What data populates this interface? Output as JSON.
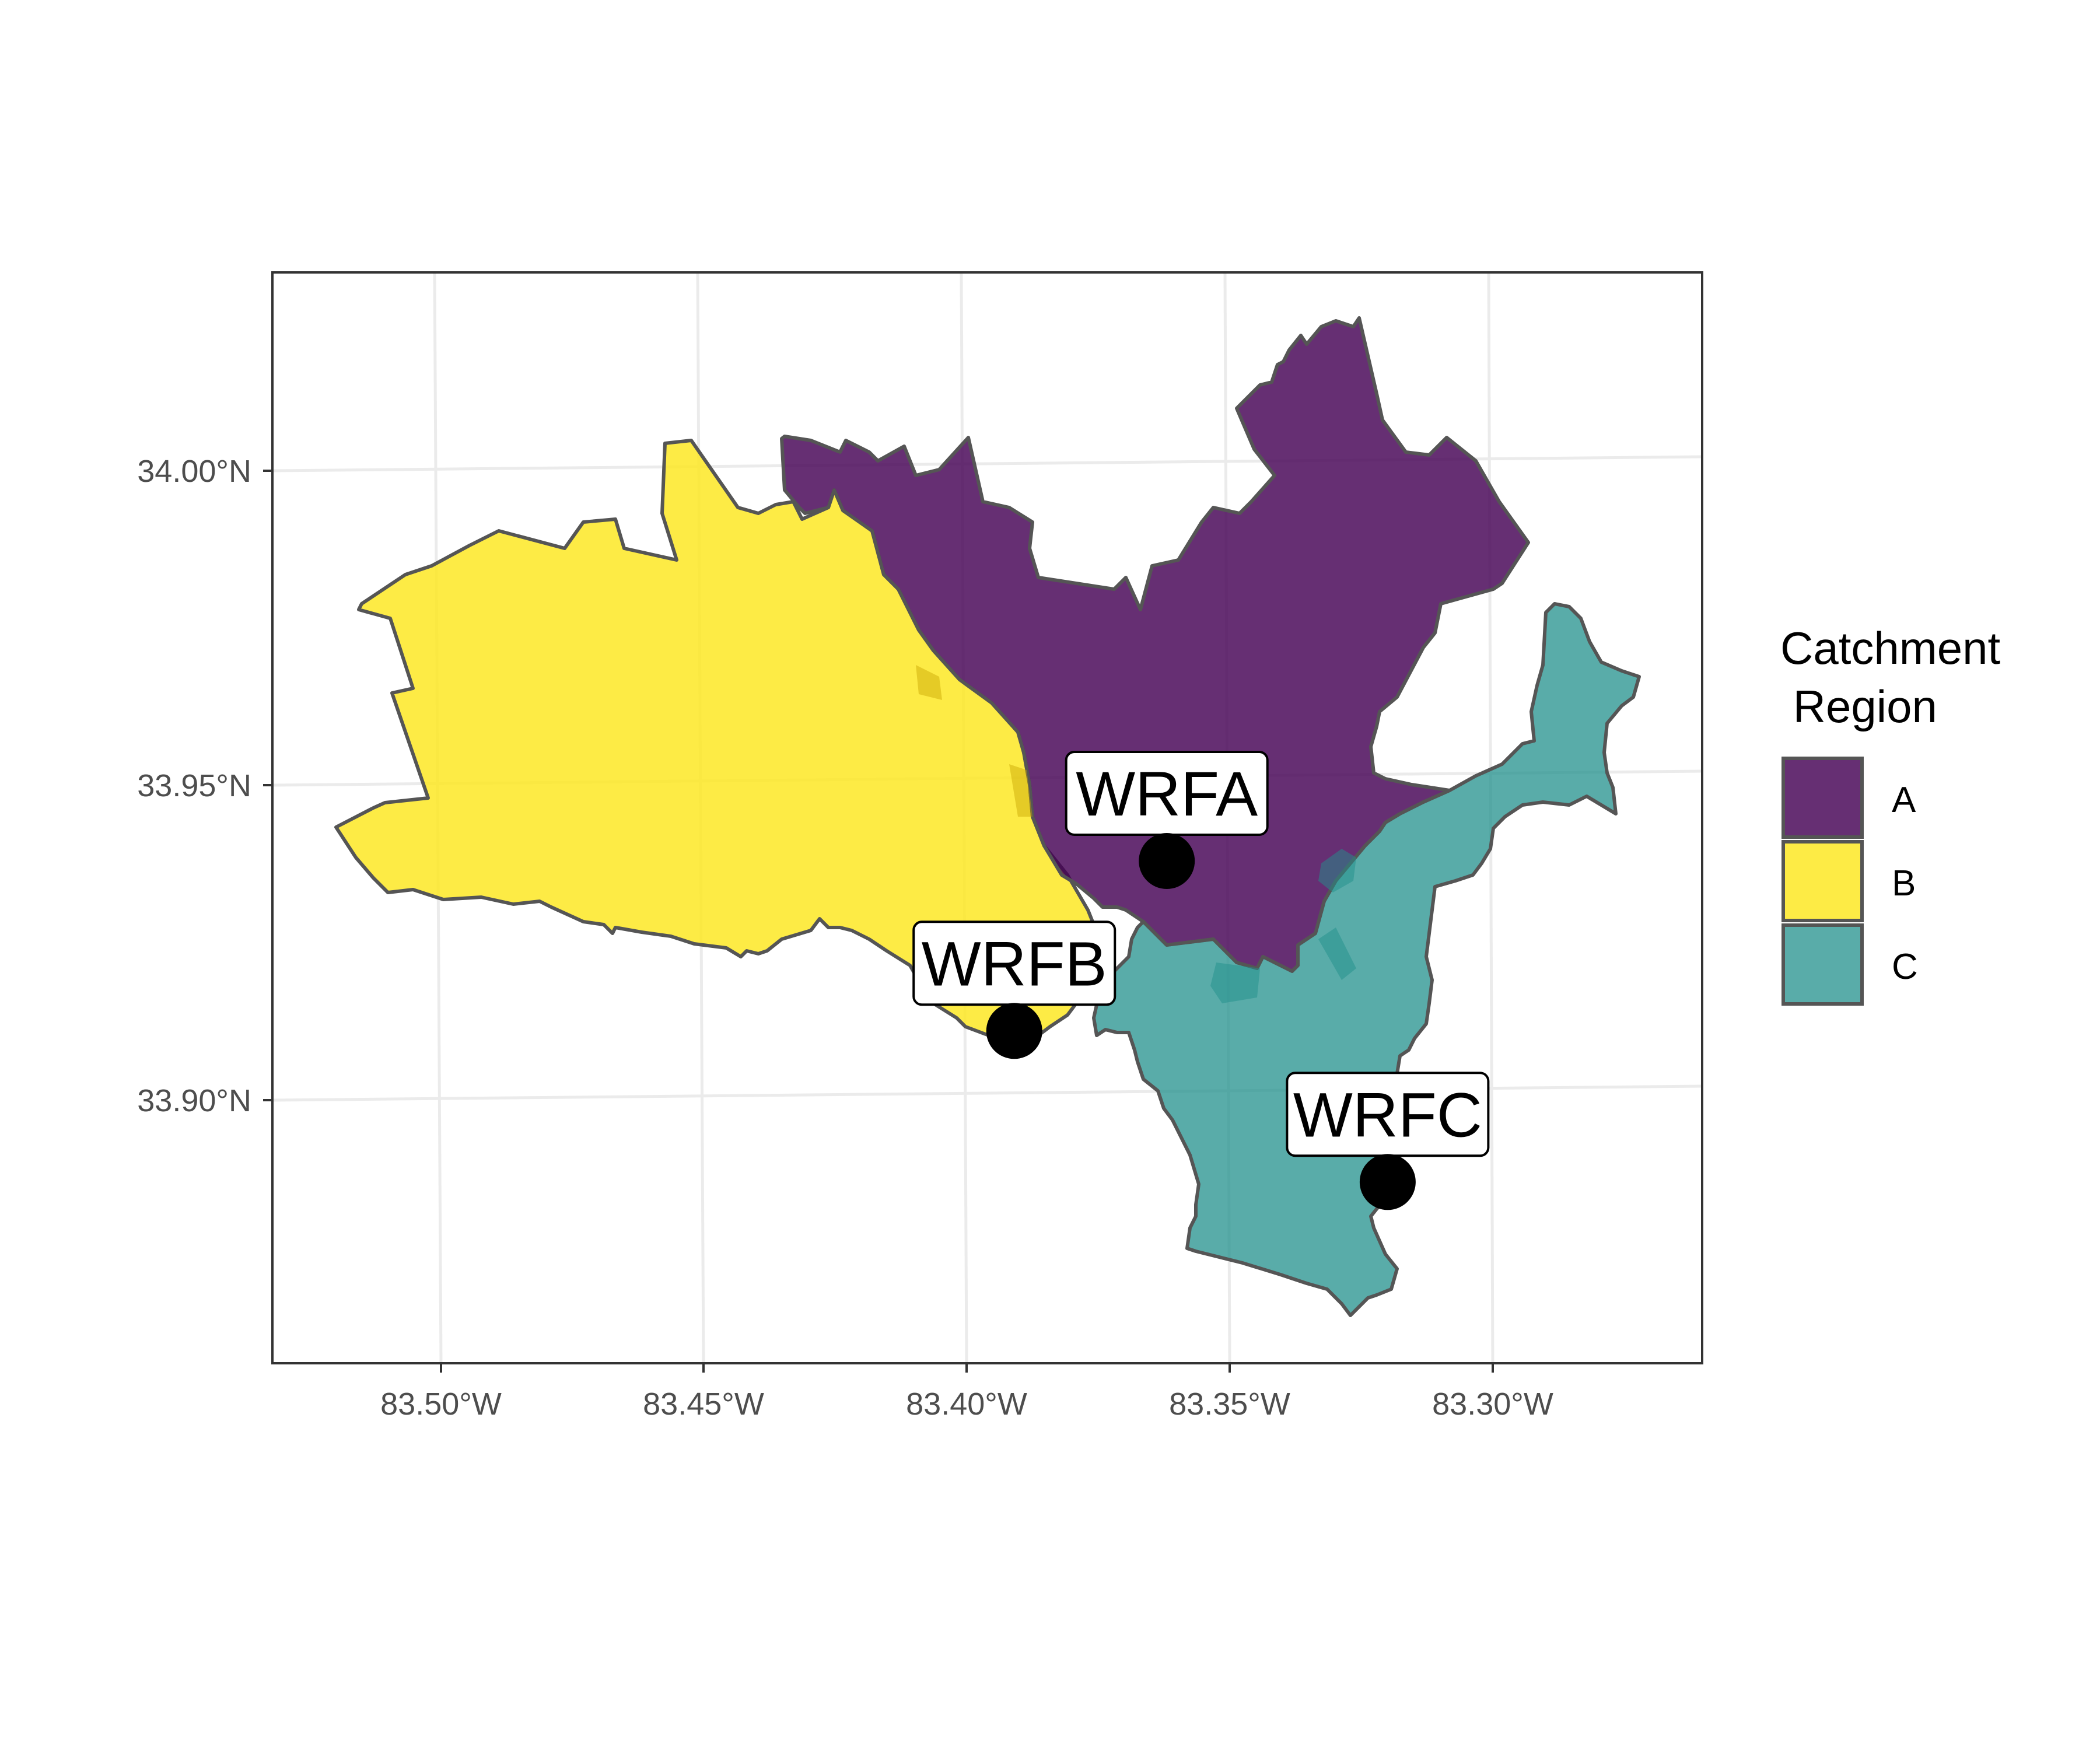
{
  "chart_data": {
    "type": "map",
    "x_axis": {
      "ticks": [
        {
          "value": -83.5,
          "label": "83.50°W"
        },
        {
          "value": -83.45,
          "label": "83.45°W"
        },
        {
          "value": -83.4,
          "label": "83.40°W"
        },
        {
          "value": -83.35,
          "label": "83.35°W"
        },
        {
          "value": -83.3,
          "label": "83.30°W"
        }
      ]
    },
    "y_axis": {
      "ticks": [
        {
          "value": 33.9,
          "label": "33.90°N"
        },
        {
          "value": 33.95,
          "label": "33.95°N"
        },
        {
          "value": 34.0,
          "label": "34.00°N"
        }
      ]
    },
    "grid": true,
    "legend": {
      "title_line1": "Catchment",
      "title_line2": " Region",
      "position": "right",
      "items": [
        {
          "label": "A",
          "color": "#440154"
        },
        {
          "label": "B",
          "color": "#FDE725"
        },
        {
          "label": "C",
          "color": "#21908C"
        }
      ]
    },
    "sites": [
      {
        "label": "WRFA",
        "lon": -83.362,
        "lat": 33.938
      },
      {
        "label": "WRFB",
        "lon": -83.391,
        "lat": 33.911
      },
      {
        "label": "WRFC",
        "lon": -83.32,
        "lat": 33.887
      }
    ],
    "regions": [
      {
        "name": "B",
        "color": "#FDE725"
      },
      {
        "name": "A",
        "color": "#440154"
      },
      {
        "name": "C",
        "color": "#21908C"
      }
    ]
  }
}
